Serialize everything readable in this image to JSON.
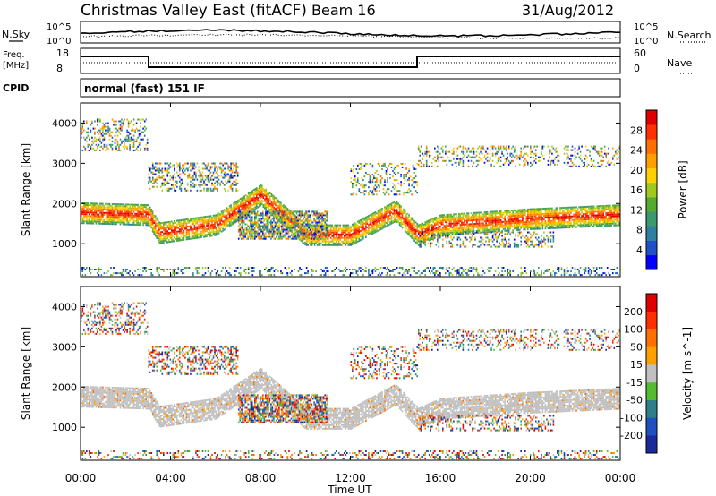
{
  "header": {
    "station": "Christmas Valley East (fitACF)",
    "beam": "Beam 16",
    "date": "31/Aug/2012"
  },
  "top_panels": {
    "nsky_label": "N.Sky",
    "nsearch_label": "N.Search",
    "noise_ticks_left": [
      "10^5",
      "10^0"
    ],
    "noise_ticks_right": [
      "10^5",
      "10^0"
    ],
    "freq_label": "Freq.",
    "freq_unit": "[MHz]",
    "freq_ticks": [
      "18",
      "8"
    ],
    "nave_label": "Nave",
    "nave_ticks": [
      "60",
      "0"
    ],
    "cpid_label": "CPID",
    "cpid_text": "normal (fast) 151 IF"
  },
  "chart_data": [
    {
      "type": "heatmap",
      "title": "",
      "xlabel": "",
      "ylabel": "Slant Range [km]",
      "x_ticks": [
        "00:00",
        "04:00",
        "08:00",
        "12:00",
        "16:00",
        "20:00",
        "00:00"
      ],
      "y_ticks": [
        1000,
        2000,
        3000,
        4000
      ],
      "xlim": [
        0,
        24
      ],
      "ylim": [
        180,
        4500
      ],
      "colorbar": {
        "label": "Power [dB]",
        "ticks": [
          4,
          8,
          12,
          16,
          20,
          24,
          28
        ],
        "colors": [
          "#0000ff",
          "#2050c8",
          "#2e7fa0",
          "#3a9a6e",
          "#55aa30",
          "#a0c820",
          "#ffd000",
          "#ffa000",
          "#ff7000",
          "#ff3000",
          "#e00000"
        ]
      },
      "features": [
        {
          "name": "main band",
          "times": [
            0,
            3,
            3.5,
            6,
            8,
            10,
            12,
            14,
            15,
            16,
            20,
            24
          ],
          "ranges": [
            1750,
            1700,
            1250,
            1450,
            2200,
            1200,
            1200,
            1800,
            1200,
            1450,
            1600,
            1700
          ]
        }
      ]
    },
    {
      "type": "heatmap",
      "title": "",
      "xlabel": "Time UT",
      "ylabel": "Slant Range [km]",
      "x_ticks": [
        "00:00",
        "04:00",
        "08:00",
        "12:00",
        "16:00",
        "20:00",
        "00:00"
      ],
      "y_ticks": [
        1000,
        2000,
        3000,
        4000
      ],
      "xlim": [
        0,
        24
      ],
      "ylim": [
        180,
        4500
      ],
      "colorbar": {
        "label": "Velocity [m s^-1]",
        "ticks": [
          200,
          100,
          50,
          15,
          -15,
          -50,
          -100,
          -200
        ],
        "colors": [
          "#1a2a9a",
          "#2050c0",
          "#2e7f88",
          "#55bb30",
          "#c0c0c0",
          "#ffa000",
          "#ff7000",
          "#ff3000",
          "#e00000"
        ]
      }
    }
  ],
  "colors": {
    "ground_scatter": "#c0c0c0",
    "axis": "#000000"
  }
}
